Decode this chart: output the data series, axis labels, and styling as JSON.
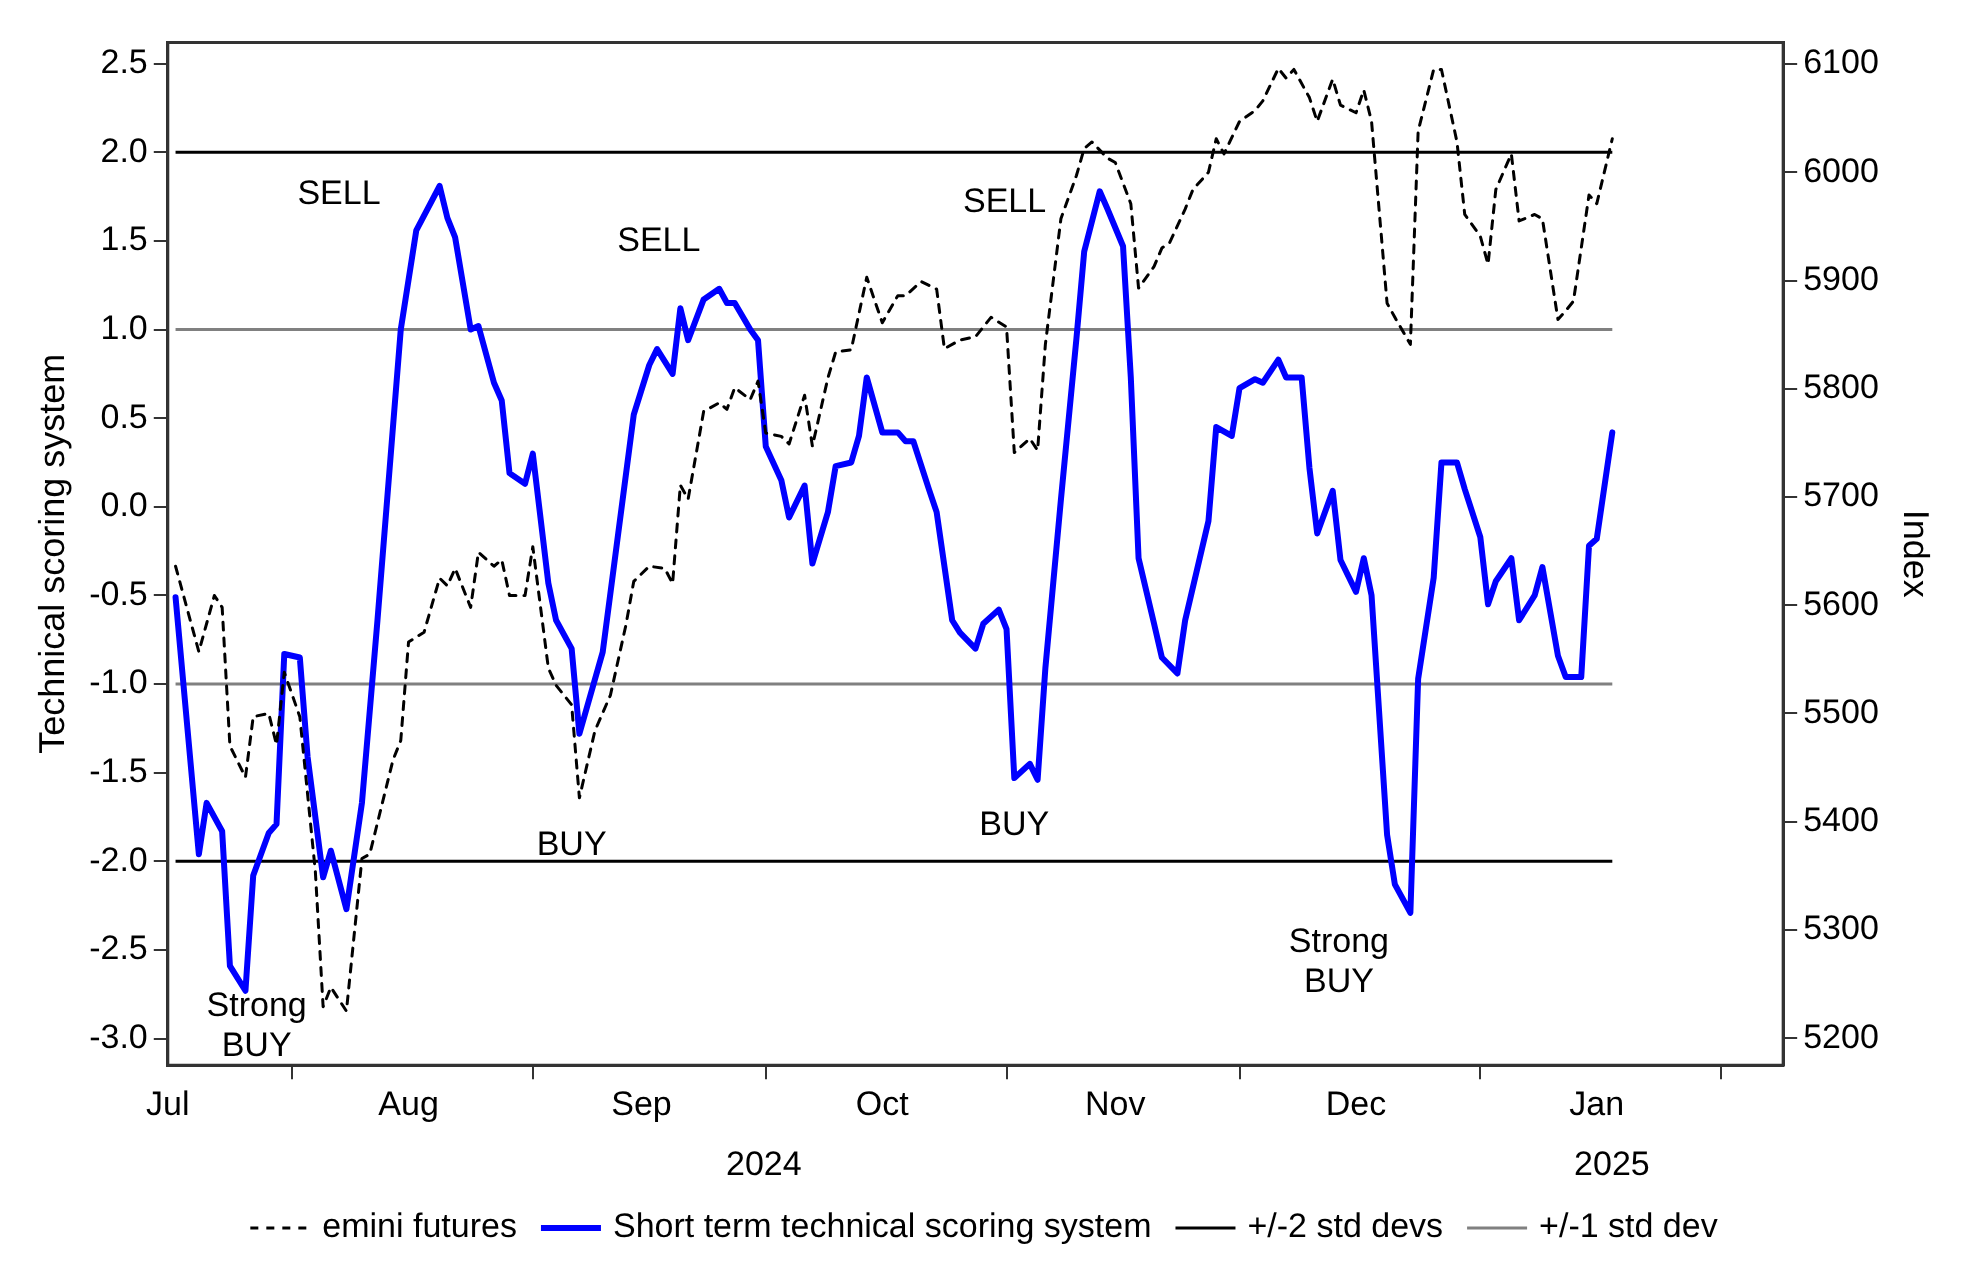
{
  "chart_data": {
    "type": "line",
    "ylabel": "Technical scoring system",
    "y2label": "Index",
    "legend": "bottom",
    "marker": "none",
    "xlim": [
      "2024-07-16",
      "2025-02-09"
    ],
    "xticks": [
      {
        "value": "2024-07-16",
        "label": "Jul"
      },
      {
        "value": "2024-08-01",
        "label": null
      },
      {
        "value": "2024-08-16",
        "label": "Aug"
      },
      {
        "value": "2024-09-01",
        "label": null
      },
      {
        "value": "2024-09-15",
        "label": "Sep"
      },
      {
        "value": "2024-10-01",
        "label": null
      },
      {
        "value": "2024-10-16",
        "label": "Oct"
      },
      {
        "value": "2024-11-01",
        "label": null
      },
      {
        "value": "2024-11-15",
        "label": "Nov"
      },
      {
        "value": "2024-12-01",
        "label": null
      },
      {
        "value": "2024-12-16",
        "label": "Dec"
      },
      {
        "value": "2025-01-01",
        "label": null
      },
      {
        "value": "2025-01-16",
        "label": "Jan"
      },
      {
        "value": "2025-02-01",
        "label": null
      }
    ],
    "ylim": [
      -3.15,
      2.62
    ],
    "yticks": [
      {
        "value": -3,
        "label": "-3.0"
      },
      -2.5,
      {
        "value": -2,
        "label": "-2.0"
      },
      -1.5,
      {
        "value": -1,
        "label": "-1.0"
      },
      -0.5,
      {
        "value": 0,
        "label": "0.0"
      },
      0.5,
      {
        "value": 1,
        "label": "1.0"
      },
      1.5,
      {
        "value": 2,
        "label": "2.0"
      },
      2.5
    ],
    "y2lim": [
      5175,
      6120
    ],
    "y2ticks": [
      5200,
      5300,
      5400,
      5500,
      5600,
      5700,
      5800,
      5900,
      6000,
      6100
    ],
    "series": [
      {
        "name": "emini futures",
        "color": "#000000",
        "axis": "y2",
        "line_style": "dashed",
        "x": [
          "2024-07-17",
          "2024-07-20",
          "2024-07-22",
          "2024-07-23",
          "2024-07-24",
          "2024-07-26",
          "2024-07-27",
          "2024-07-29",
          "2024-07-30",
          "2024-07-31",
          "2024-08-02",
          "2024-08-04",
          "2024-08-05",
          "2024-08-06",
          "2024-08-08",
          "2024-08-10",
          "2024-08-11",
          "2024-08-14",
          "2024-08-15",
          "2024-08-16",
          "2024-08-18",
          "2024-08-20",
          "2024-08-21",
          "2024-08-22",
          "2024-08-24",
          "2024-08-25",
          "2024-08-27",
          "2024-08-28",
          "2024-08-29",
          "2024-08-31",
          "2024-09-01",
          "2024-09-03",
          "2024-09-04",
          "2024-09-06",
          "2024-09-07",
          "2024-09-09",
          "2024-09-11",
          "2024-09-13",
          "2024-09-14",
          "2024-09-16",
          "2024-09-18",
          "2024-09-19",
          "2024-09-20",
          "2024-09-21",
          "2024-09-23",
          "2024-09-25",
          "2024-09-26",
          "2024-09-27",
          "2024-09-29",
          "2024-09-30",
          "2024-10-01",
          "2024-10-03",
          "2024-10-04",
          "2024-10-06",
          "2024-10-07",
          "2024-10-09",
          "2024-10-10",
          "2024-10-12",
          "2024-10-14",
          "2024-10-16",
          "2024-10-18",
          "2024-10-19",
          "2024-10-21",
          "2024-10-23",
          "2024-10-24",
          "2024-10-26",
          "2024-10-28",
          "2024-10-30",
          "2024-11-01",
          "2024-11-02",
          "2024-11-04",
          "2024-11-05",
          "2024-11-06",
          "2024-11-08",
          "2024-11-10",
          "2024-11-11",
          "2024-11-12",
          "2024-11-14",
          "2024-11-15",
          "2024-11-17",
          "2024-11-18",
          "2024-11-20",
          "2024-11-21",
          "2024-11-22",
          "2024-11-24",
          "2024-11-25",
          "2024-11-27",
          "2024-11-28",
          "2024-11-29",
          "2024-12-01",
          "2024-12-03",
          "2024-12-04",
          "2024-12-06",
          "2024-12-07",
          "2024-12-08",
          "2024-12-10",
          "2024-12-11",
          "2024-12-13",
          "2024-12-14",
          "2024-12-16",
          "2024-12-17",
          "2024-12-18",
          "2024-12-20",
          "2024-12-21",
          "2024-12-23",
          "2024-12-24",
          "2024-12-26",
          "2024-12-27",
          "2024-12-29",
          "2024-12-30",
          "2025-01-01",
          "2025-01-02",
          "2025-01-03",
          "2025-01-05",
          "2025-01-06",
          "2025-01-08",
          "2025-01-09",
          "2025-01-11",
          "2025-01-12",
          "2025-01-13",
          "2025-01-15",
          "2025-01-16",
          "2025-01-18"
        ],
        "values": [
          5636,
          5557,
          5609,
          5598,
          5470,
          5441,
          5497,
          5500,
          5471,
          5538,
          5497,
          5354,
          5229,
          5247,
          5225,
          5366,
          5370,
          5457,
          5475,
          5566,
          5575,
          5625,
          5618,
          5634,
          5598,
          5649,
          5636,
          5642,
          5609,
          5609,
          5654,
          5542,
          5526,
          5508,
          5422,
          5484,
          5517,
          5582,
          5622,
          5636,
          5634,
          5620,
          5711,
          5698,
          5779,
          5787,
          5781,
          5801,
          5790,
          5807,
          5759,
          5756,
          5749,
          5794,
          5747,
          5810,
          5834,
          5836,
          5903,
          5861,
          5886,
          5886,
          5899,
          5892,
          5837,
          5845,
          5848,
          5866,
          5857,
          5741,
          5754,
          5743,
          5841,
          5957,
          5997,
          6022,
          6028,
          6013,
          6009,
          5971,
          5893,
          5913,
          5930,
          5935,
          5966,
          5984,
          6000,
          6031,
          6017,
          6047,
          6057,
          6066,
          6096,
          6087,
          6095,
          6069,
          6047,
          6086,
          6062,
          6055,
          6076,
          6047,
          5879,
          5866,
          5841,
          6038,
          6095,
          6095,
          6028,
          5961,
          5941,
          5915,
          5984,
          6017,
          5955,
          5961,
          5957,
          5864,
          5872,
          5881,
          5979,
          5971,
          6031
        ]
      },
      {
        "name": "Short term technical scoring system",
        "color": "#0000ff",
        "line_style": "solid",
        "x": [
          "2024-07-17",
          "2024-07-20",
          "2024-07-21",
          "2024-07-23",
          "2024-07-24",
          "2024-07-26",
          "2024-07-27",
          "2024-07-29",
          "2024-07-30",
          "2024-07-31",
          "2024-08-02",
          "2024-08-03",
          "2024-08-05",
          "2024-08-06",
          "2024-08-08",
          "2024-08-10",
          "2024-08-12",
          "2024-08-15",
          "2024-08-17",
          "2024-08-20",
          "2024-08-21",
          "2024-08-22",
          "2024-08-24",
          "2024-08-25",
          "2024-08-27",
          "2024-08-28",
          "2024-08-29",
          "2024-08-31",
          "2024-09-01",
          "2024-09-03",
          "2024-09-04",
          "2024-09-06",
          "2024-09-07",
          "2024-09-10",
          "2024-09-12",
          "2024-09-14",
          "2024-09-16",
          "2024-09-17",
          "2024-09-19",
          "2024-09-20",
          "2024-09-21",
          "2024-09-23",
          "2024-09-25",
          "2024-09-26",
          "2024-09-27",
          "2024-09-29",
          "2024-09-30",
          "2024-10-01",
          "2024-10-03",
          "2024-10-04",
          "2024-10-06",
          "2024-10-07",
          "2024-10-09",
          "2024-10-10",
          "2024-10-12",
          "2024-10-13",
          "2024-10-14",
          "2024-10-16",
          "2024-10-18",
          "2024-10-19",
          "2024-10-20",
          "2024-10-22",
          "2024-10-23",
          "2024-10-25",
          "2024-10-26",
          "2024-10-28",
          "2024-10-29",
          "2024-10-31",
          "2024-11-01",
          "2024-11-02",
          "2024-11-04",
          "2024-11-05",
          "2024-11-06",
          "2024-11-08",
          "2024-11-10",
          "2024-11-11",
          "2024-11-13",
          "2024-11-14",
          "2024-11-16",
          "2024-11-17",
          "2024-11-18",
          "2024-11-20",
          "2024-11-21",
          "2024-11-23",
          "2024-11-24",
          "2024-11-27",
          "2024-11-28",
          "2024-11-30",
          "2024-12-01",
          "2024-12-03",
          "2024-12-04",
          "2024-12-06",
          "2024-12-07",
          "2024-12-09",
          "2024-12-10",
          "2024-12-11",
          "2024-12-13",
          "2024-12-14",
          "2024-12-16",
          "2024-12-17",
          "2024-12-18",
          "2024-12-20",
          "2024-12-21",
          "2024-12-23",
          "2024-12-24",
          "2024-12-26",
          "2024-12-27",
          "2024-12-29",
          "2024-12-30",
          "2025-01-01",
          "2025-01-02",
          "2025-01-03",
          "2025-01-05",
          "2025-01-06",
          "2025-01-08",
          "2025-01-09",
          "2025-01-11",
          "2025-01-12",
          "2025-01-14",
          "2025-01-15",
          "2025-01-16",
          "2025-01-18"
        ],
        "values": [
          -0.51,
          -1.96,
          -1.67,
          -1.83,
          -2.59,
          -2.73,
          -2.08,
          -1.84,
          -1.79,
          -0.83,
          -0.85,
          -1.41,
          -2.09,
          -1.94,
          -2.27,
          -1.67,
          -0.64,
          1.0,
          1.56,
          1.81,
          1.63,
          1.52,
          1.0,
          1.02,
          0.7,
          0.6,
          0.19,
          0.13,
          0.3,
          -0.43,
          -0.64,
          -0.8,
          -1.28,
          -0.82,
          -0.15,
          0.52,
          0.8,
          0.89,
          0.75,
          1.12,
          0.94,
          1.17,
          1.23,
          1.15,
          1.15,
          1.0,
          0.94,
          0.34,
          0.15,
          -0.06,
          0.12,
          -0.32,
          -0.03,
          0.23,
          0.25,
          0.4,
          0.73,
          0.42,
          0.42,
          0.37,
          0.37,
          0.1,
          -0.03,
          -0.64,
          -0.71,
          -0.8,
          -0.66,
          -0.58,
          -0.69,
          -1.53,
          -1.45,
          -1.54,
          -0.91,
          0.04,
          0.95,
          1.44,
          1.78,
          1.68,
          1.47,
          0.73,
          -0.29,
          -0.66,
          -0.85,
          -0.94,
          -0.64,
          -0.08,
          0.45,
          0.4,
          0.67,
          0.72,
          0.7,
          0.83,
          0.73,
          0.73,
          0.22,
          -0.15,
          0.09,
          -0.3,
          -0.48,
          -0.29,
          -0.5,
          -1.85,
          -2.13,
          -2.29,
          -0.97,
          -0.4,
          0.25,
          0.25,
          0.1,
          -0.17,
          -0.55,
          -0.42,
          -0.29,
          -0.64,
          -0.5,
          -0.34,
          -0.84,
          -0.96,
          -0.96,
          -0.22,
          -0.18,
          0.42
        ]
      }
    ],
    "ref_lines": [
      {
        "axis": "y",
        "value": 2,
        "label": "+/-2 std devs",
        "color": "#000000"
      },
      {
        "axis": "y",
        "value": -2,
        "color": "#000000"
      },
      {
        "axis": "y",
        "value": 1,
        "label": "+/-1 std dev",
        "color": "#808080"
      },
      {
        "axis": "y",
        "value": -1,
        "color": "#808080"
      }
    ],
    "annotations": [
      "SELL",
      "SELL",
      "SELL",
      "BUY",
      "BUY",
      "Strong BUY",
      "Strong BUY",
      "2024",
      "2025"
    ]
  }
}
